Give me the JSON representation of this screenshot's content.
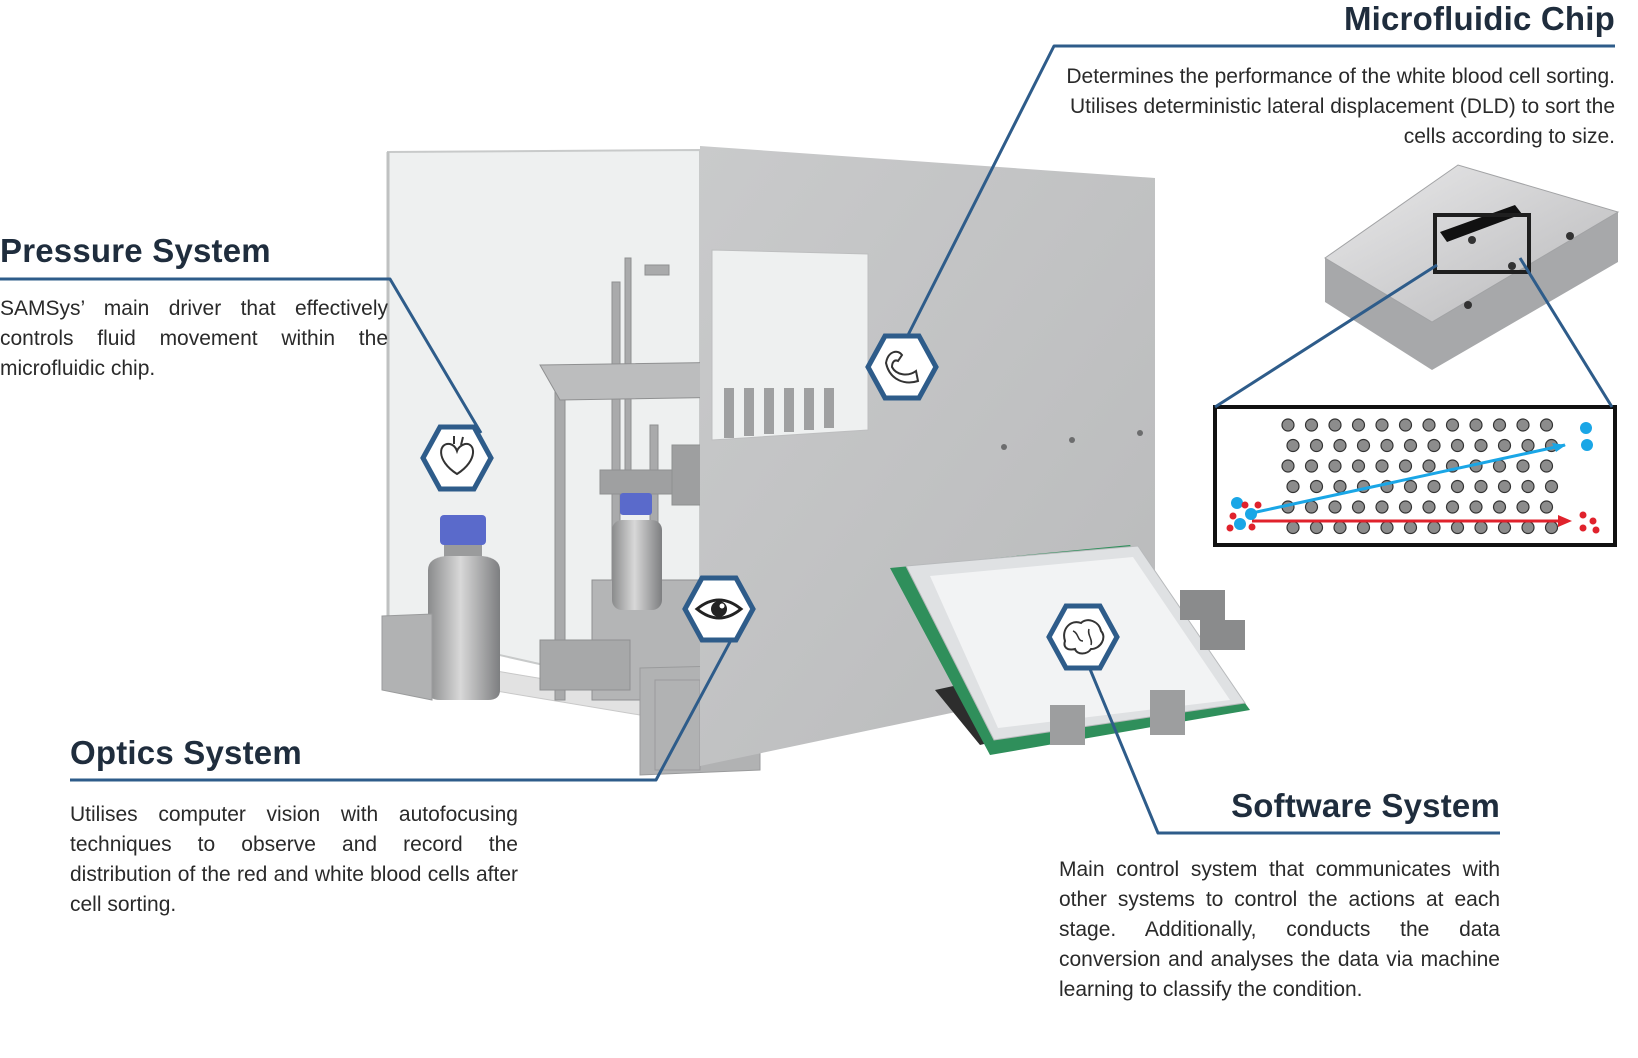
{
  "sections": {
    "pressure": {
      "title": "Pressure System",
      "description": "SAMSys’ main driver that effectively controls fluid movement within the microfluidic chip.",
      "icon": "heart-icon"
    },
    "optics": {
      "title": "Optics System",
      "description": "Utilises computer vision with autofocusing techniques to observe and record the distribution of the red and white blood cells after cell sorting.",
      "icon": "eye-icon"
    },
    "microfluidic": {
      "title": "Microfluidic Chip",
      "description": "Determines the performance of the white blood cell sorting. Utilises deterministic lateral displacement (DLD) to sort the cells according to size.",
      "icon": "muscle-arm-icon"
    },
    "software": {
      "title": "Software System",
      "description": "Main control system that communicates with other systems to control the actions at each stage. Additionally, conducts the data conversion and analyses the data via machine learning to classify the condition.",
      "icon": "brain-icon"
    }
  },
  "colors": {
    "leader_line": "#2e5c8a",
    "title": "#1f2d3d",
    "red_cells": "#e0222c",
    "white_cells": "#1aa6e6"
  }
}
